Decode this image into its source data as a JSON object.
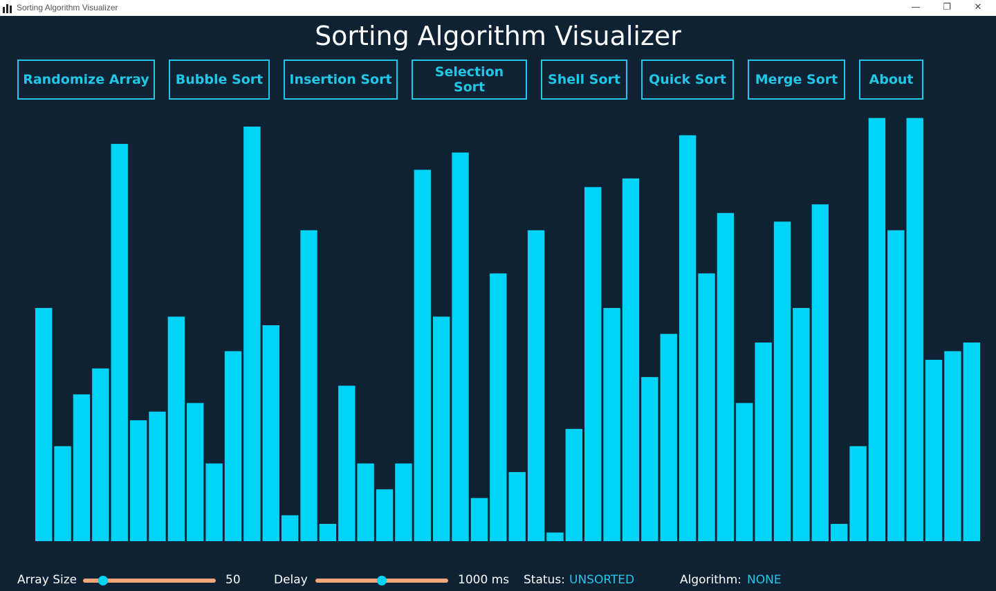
{
  "window": {
    "title": "Sorting Algorithm Visualizer",
    "minimize_glyph": "—",
    "maximize_glyph": "❐",
    "close_glyph": "✕"
  },
  "heading": "Sorting Algorithm Visualizer",
  "buttons": [
    {
      "label": "Randomize Array"
    },
    {
      "label": "Bubble Sort"
    },
    {
      "label": "Insertion Sort"
    },
    {
      "label": "Selection Sort"
    },
    {
      "label": "Shell Sort"
    },
    {
      "label": "Quick Sort"
    },
    {
      "label": "Merge Sort"
    },
    {
      "label": "About"
    }
  ],
  "colors": {
    "background": "#0f2233",
    "bar": "#00d4f6",
    "accent": "#21c7e6",
    "slider_track": "#f2a779"
  },
  "controls": {
    "array_size_label": "Array Size",
    "array_size_value": "50",
    "array_size_fraction": 0.15,
    "delay_label": "Delay",
    "delay_value": "1000 ms",
    "delay_fraction": 0.5,
    "status_label": "Status:",
    "status_value": "UNSORTED",
    "algorithm_label": "Algorithm:",
    "algorithm_value": "NONE"
  },
  "chart_data": {
    "type": "bar",
    "values": [
      54,
      22,
      34,
      40,
      92,
      28,
      30,
      52,
      32,
      18,
      44,
      96,
      50,
      6,
      72,
      4,
      36,
      18,
      12,
      18,
      86,
      52,
      90,
      10,
      62,
      16,
      72,
      2,
      26,
      82,
      54,
      84,
      38,
      48,
      94,
      62,
      76,
      32,
      46,
      74,
      54,
      78,
      4,
      22,
      98,
      72,
      98,
      42,
      44,
      46
    ],
    "ylim": [
      0,
      100
    ]
  }
}
